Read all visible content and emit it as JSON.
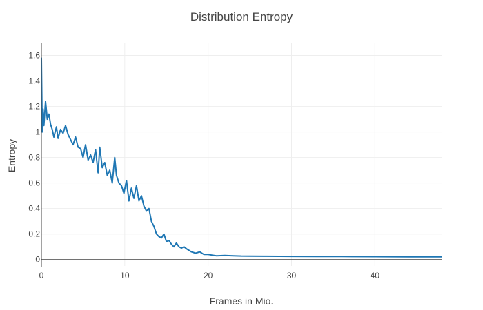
{
  "chart_data": {
    "type": "line",
    "title": "Distribution Entropy",
    "xlabel": "Frames in Mio.",
    "ylabel": "Entropy",
    "xlim": [
      0,
      48
    ],
    "ylim": [
      -0.05,
      1.7
    ],
    "xticks": [
      0,
      10,
      20,
      30,
      40
    ],
    "xtick_labels": [
      "0",
      "10",
      "20",
      "30",
      "40"
    ],
    "yticks": [
      0,
      0.2,
      0.4,
      0.6,
      0.8,
      1,
      1.2,
      1.4,
      1.6
    ],
    "ytick_labels": [
      "0",
      "0.2",
      "0.4",
      "0.6",
      "0.8",
      "1",
      "1.2",
      "1.4",
      "1.6"
    ],
    "grid": true,
    "line_color": "#1f77b4",
    "series": [
      {
        "x": [
          0,
          0.1,
          0.2,
          0.3,
          0.5,
          0.7,
          0.9,
          1.1,
          1.3,
          1.5,
          1.8,
          2.0,
          2.3,
          2.6,
          2.9,
          3.2,
          3.5,
          3.8,
          4.1,
          4.4,
          4.7,
          5.0,
          5.3,
          5.6,
          5.9,
          6.2,
          6.5,
          6.8,
          7.0,
          7.3,
          7.6,
          7.9,
          8.2,
          8.5,
          8.8,
          9.0,
          9.3,
          9.6,
          9.9,
          10.2,
          10.5,
          10.8,
          11.1,
          11.4,
          11.7,
          12.0,
          12.3,
          12.6,
          12.9,
          13.2,
          13.5,
          13.8,
          14.1,
          14.4,
          14.7,
          15.0,
          15.3,
          15.6,
          15.9,
          16.2,
          16.5,
          16.8,
          17.1,
          17.5,
          18.0,
          18.5,
          19.0,
          19.5,
          20.0,
          20.5,
          21.0,
          22.0,
          23.0,
          24.0,
          25.0,
          27.0,
          30.0,
          33.0,
          36.0,
          40.0,
          44.0,
          48.0
        ],
        "y": [
          1.58,
          1.0,
          1.18,
          1.05,
          1.24,
          1.1,
          1.14,
          1.06,
          1.02,
          0.96,
          1.04,
          0.95,
          1.02,
          0.99,
          1.05,
          0.98,
          0.94,
          0.9,
          0.96,
          0.88,
          0.87,
          0.8,
          0.9,
          0.78,
          0.82,
          0.76,
          0.86,
          0.68,
          0.88,
          0.72,
          0.76,
          0.66,
          0.7,
          0.6,
          0.8,
          0.66,
          0.6,
          0.58,
          0.52,
          0.62,
          0.46,
          0.56,
          0.48,
          0.58,
          0.46,
          0.5,
          0.42,
          0.38,
          0.4,
          0.3,
          0.26,
          0.2,
          0.18,
          0.17,
          0.2,
          0.14,
          0.15,
          0.12,
          0.1,
          0.13,
          0.1,
          0.09,
          0.1,
          0.08,
          0.06,
          0.05,
          0.06,
          0.04,
          0.04,
          0.035,
          0.03,
          0.032,
          0.03,
          0.028,
          0.027,
          0.026,
          0.025,
          0.024,
          0.024,
          0.023,
          0.022,
          0.022
        ]
      }
    ]
  }
}
